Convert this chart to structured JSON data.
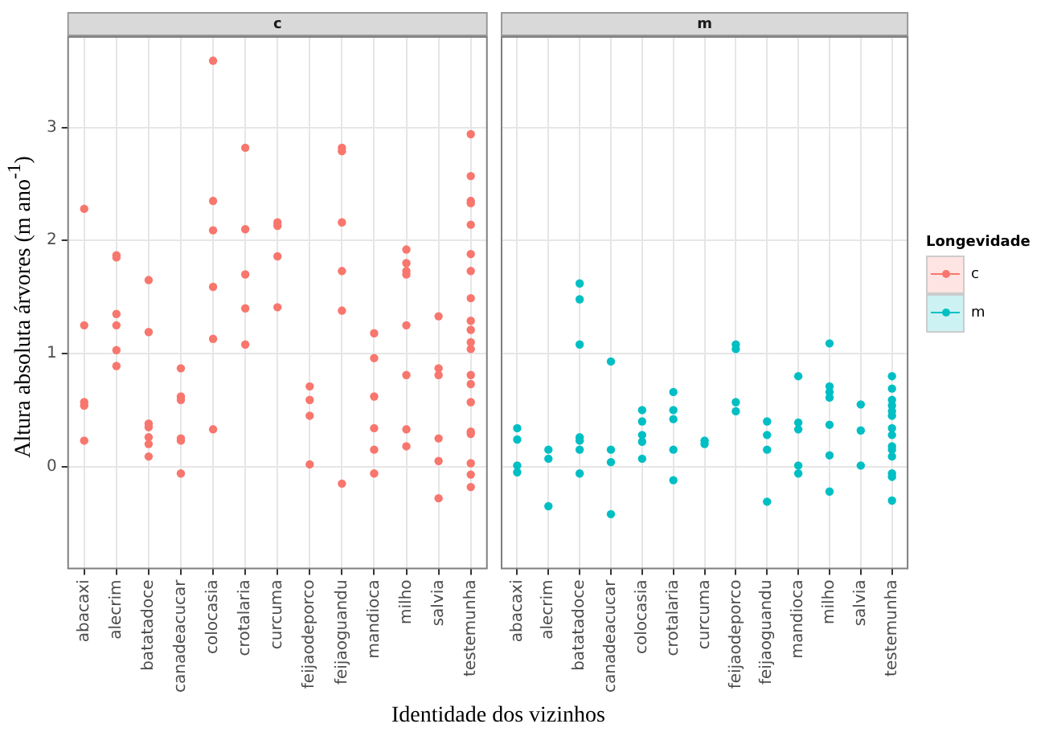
{
  "chart_data": [
    {
      "type": "scatter",
      "title": "c",
      "ylabel": "Altura absoluta árvores (m ano$^{-1}$)",
      "xlabel": "Identidade dos vizinhos",
      "categories": [
        "abacaxi",
        "alecrim",
        "batatadoce",
        "canadeacucar",
        "colocasia",
        "crotalaria",
        "curcuma",
        "feijaodeporco",
        "feijaoguandu",
        "mandioca",
        "milho",
        "salvia",
        "testemunha"
      ],
      "ylim": [
        -0.9,
        3.8
      ],
      "yticks": [
        0,
        1,
        2,
        3
      ],
      "grid": true,
      "marker": "circle",
      "series": [
        {
          "name": "c",
          "color": "#f8766d",
          "x": [
            "abacaxi",
            "abacaxi",
            "abacaxi",
            "abacaxi",
            "abacaxi",
            "alecrim",
            "alecrim",
            "alecrim",
            "alecrim",
            "alecrim",
            "alecrim",
            "batatadoce",
            "batatadoce",
            "batatadoce",
            "batatadoce",
            "batatadoce",
            "batatadoce",
            "batatadoce",
            "canadeacucar",
            "canadeacucar",
            "canadeacucar",
            "canadeacucar",
            "canadeacucar",
            "canadeacucar",
            "colocasia",
            "colocasia",
            "colocasia",
            "colocasia",
            "colocasia",
            "colocasia",
            "crotalaria",
            "crotalaria",
            "crotalaria",
            "crotalaria",
            "crotalaria",
            "curcuma",
            "curcuma",
            "curcuma",
            "curcuma",
            "feijaodeporco",
            "feijaodeporco",
            "feijaodeporco",
            "feijaodeporco",
            "feijaoguandu",
            "feijaoguandu",
            "feijaoguandu",
            "feijaoguandu",
            "feijaoguandu",
            "feijaoguandu",
            "mandioca",
            "mandioca",
            "mandioca",
            "mandioca",
            "mandioca",
            "mandioca",
            "milho",
            "milho",
            "milho",
            "milho",
            "milho",
            "milho",
            "milho",
            "milho",
            "salvia",
            "salvia",
            "salvia",
            "salvia",
            "salvia",
            "salvia",
            "testemunha",
            "testemunha",
            "testemunha",
            "testemunha",
            "testemunha",
            "testemunha",
            "testemunha",
            "testemunha",
            "testemunha",
            "testemunha",
            "testemunha",
            "testemunha",
            "testemunha",
            "testemunha",
            "testemunha",
            "testemunha",
            "testemunha",
            "testemunha",
            "testemunha",
            "testemunha"
          ],
          "values": [
            2.28,
            1.25,
            0.57,
            0.54,
            0.23,
            1.87,
            1.85,
            1.35,
            1.25,
            1.03,
            0.89,
            1.65,
            1.19,
            0.38,
            0.35,
            0.26,
            0.2,
            0.09,
            0.87,
            0.62,
            0.59,
            0.25,
            0.23,
            -0.06,
            3.59,
            2.35,
            2.09,
            1.59,
            1.13,
            0.33,
            2.82,
            2.1,
            1.7,
            1.4,
            1.08,
            2.16,
            2.13,
            1.86,
            1.41,
            0.71,
            0.59,
            0.45,
            0.02,
            2.82,
            2.79,
            2.16,
            1.73,
            1.38,
            -0.15,
            1.18,
            0.96,
            0.62,
            0.34,
            0.15,
            -0.06,
            1.92,
            1.8,
            1.73,
            1.7,
            1.25,
            0.81,
            0.33,
            0.18,
            1.33,
            0.87,
            0.81,
            0.25,
            0.05,
            -0.28,
            2.94,
            2.57,
            2.35,
            2.33,
            2.14,
            1.88,
            1.73,
            1.49,
            1.29,
            1.21,
            1.1,
            1.04,
            0.81,
            0.73,
            0.57,
            0.31,
            0.29,
            0.03,
            -0.07,
            -0.18
          ]
        }
      ]
    },
    {
      "type": "scatter",
      "title": "m",
      "categories": [
        "abacaxi",
        "alecrim",
        "batatadoce",
        "canadeacucar",
        "colocasia",
        "crotalaria",
        "curcuma",
        "feijaodeporco",
        "feijaoguandu",
        "mandioca",
        "milho",
        "salvia",
        "testemunha"
      ],
      "ylim": [
        -0.9,
        3.8
      ],
      "yticks": [
        0,
        1,
        2,
        3
      ],
      "tick_labels": "x",
      "grid": true,
      "marker": "circle",
      "legend": "right",
      "legend_title": "Longevidade",
      "series": [
        {
          "name": "m",
          "color": "#00bfc4",
          "x": [
            "abacaxi",
            "abacaxi",
            "abacaxi",
            "abacaxi",
            "alecrim",
            "alecrim",
            "alecrim",
            "batatadoce",
            "batatadoce",
            "batatadoce",
            "batatadoce",
            "batatadoce",
            "batatadoce",
            "batatadoce",
            "canadeacucar",
            "canadeacucar",
            "canadeacucar",
            "canadeacucar",
            "colocasia",
            "colocasia",
            "colocasia",
            "colocasia",
            "colocasia",
            "crotalaria",
            "crotalaria",
            "crotalaria",
            "crotalaria",
            "crotalaria",
            "curcuma",
            "curcuma",
            "feijaodeporco",
            "feijaodeporco",
            "feijaodeporco",
            "feijaodeporco",
            "feijaoguandu",
            "feijaoguandu",
            "feijaoguandu",
            "feijaoguandu",
            "mandioca",
            "mandioca",
            "mandioca",
            "mandioca",
            "mandioca",
            "milho",
            "milho",
            "milho",
            "milho",
            "milho",
            "milho",
            "milho",
            "salvia",
            "salvia",
            "salvia",
            "testemunha",
            "testemunha",
            "testemunha",
            "testemunha",
            "testemunha",
            "testemunha",
            "testemunha",
            "testemunha",
            "testemunha",
            "testemunha",
            "testemunha",
            "testemunha",
            "testemunha",
            "testemunha"
          ],
          "values": [
            0.34,
            0.24,
            0.01,
            -0.05,
            0.15,
            0.07,
            -0.35,
            1.62,
            1.48,
            1.08,
            0.26,
            0.23,
            0.15,
            -0.06,
            0.93,
            0.15,
            0.04,
            -0.42,
            0.5,
            0.4,
            0.28,
            0.22,
            0.07,
            0.66,
            0.5,
            0.42,
            0.15,
            -0.12,
            0.23,
            0.2,
            1.08,
            1.04,
            0.57,
            0.49,
            0.4,
            0.28,
            0.15,
            -0.31,
            0.8,
            0.39,
            0.33,
            0.01,
            -0.06,
            1.09,
            0.71,
            0.66,
            0.61,
            0.37,
            0.1,
            -0.22,
            0.55,
            0.32,
            0.01,
            0.8,
            0.69,
            0.59,
            0.54,
            0.49,
            0.45,
            0.34,
            0.28,
            0.18,
            0.15,
            0.09,
            -0.06,
            -0.09,
            -0.3
          ]
        }
      ]
    }
  ]
}
